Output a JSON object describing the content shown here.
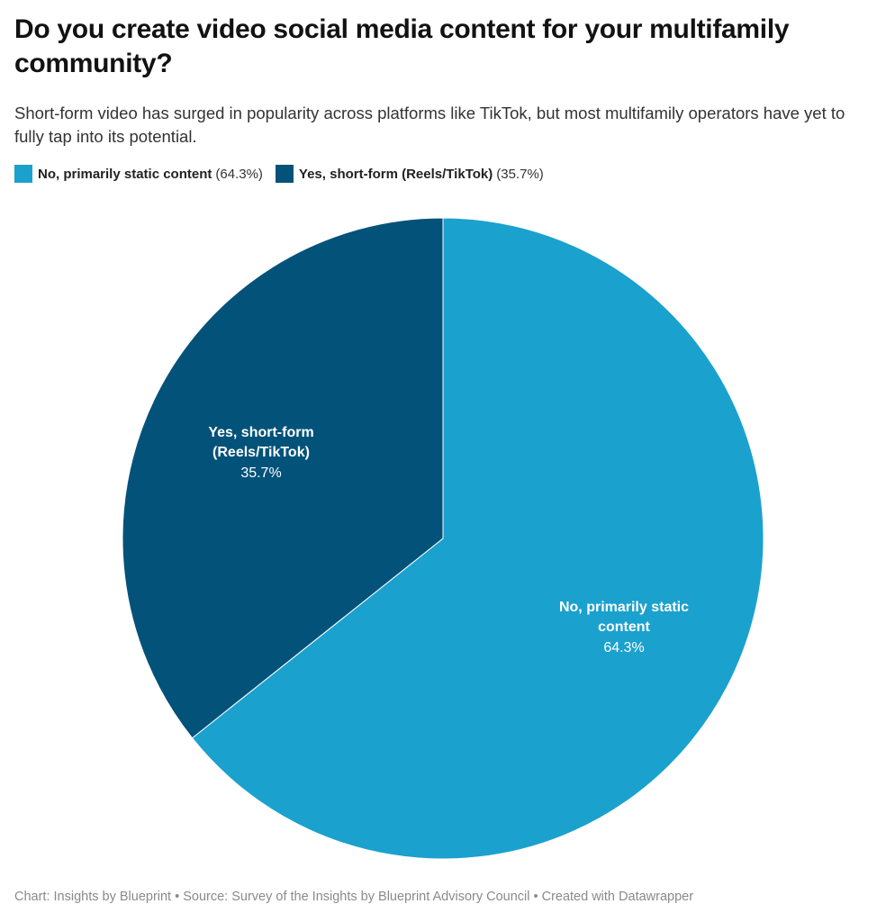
{
  "chart_data": {
    "type": "pie",
    "title": "Do you create video social media content for your multifamily community?",
    "subtitle": "Short-form video has surged in popularity across platforms like TikTok, but most multifamily operators have yet to fully tap into its potential.",
    "legend_placement": "top-left",
    "slices": [
      {
        "name": "No, primarily static content",
        "label_lines": [
          "No, primarily static",
          "content"
        ],
        "value": 64.3,
        "value_label": "64.3%",
        "legend_value": "(64.3%)",
        "color": "#1ba1cd"
      },
      {
        "name": "Yes, short-form (Reels/TikTok)",
        "label_lines": [
          "Yes, short-form",
          "(Reels/TikTok)"
        ],
        "value": 35.7,
        "value_label": "35.7%",
        "legend_value": "(35.7%)",
        "color": "#03527a"
      }
    ],
    "footer": "Chart: Insights by Blueprint • Source: Survey of the Insights by Blueprint Advisory Council • Created with Datawrapper"
  }
}
